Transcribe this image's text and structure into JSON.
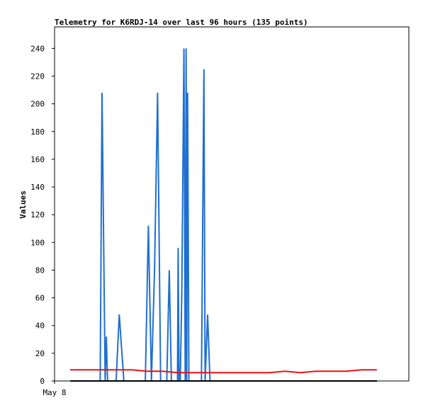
{
  "chart_data": {
    "type": "line",
    "title": "Telemetry for K6RDJ-14 over last 96 hours (135 points)",
    "xlabel": "",
    "ylabel": "Values",
    "x_ticks": [
      "May 8"
    ],
    "y_ticks": [
      0,
      20,
      40,
      60,
      80,
      100,
      120,
      140,
      160,
      180,
      200,
      220,
      240
    ],
    "ylim": [
      0,
      255
    ],
    "xlim": [
      0,
      100
    ],
    "grid": false,
    "legend": "none",
    "series": [
      {
        "color": "#1f6fd1",
        "x": [
          0,
          1,
          2,
          3,
          4,
          5,
          6,
          7,
          8,
          9,
          9.8,
          10.4,
          11.4,
          11.8,
          12.2,
          12.8,
          14,
          15,
          16,
          17.5,
          18.5,
          19.5,
          20.5,
          21.5,
          22.5,
          23.5,
          24.5,
          25.5,
          26.5,
          27.5,
          28.5,
          29.5,
          30.5,
          31.5,
          32.3,
          33,
          33.6,
          33.8,
          34.2,
          34.6,
          35,
          35.2,
          35.5,
          35.9,
          36.4,
          37.1,
          37.5,
          37.8,
          38,
          38.3,
          38.7,
          39.5,
          40.5,
          41.5,
          42.8,
          43.6,
          44,
          44.8,
          45.6,
          46,
          47,
          48.2,
          49.2,
          50,
          50.7,
          51,
          51.4,
          51.8,
          52.2,
          52.6,
          53,
          53.2,
          53.6,
          54,
          54.4,
          55,
          56,
          57,
          58,
          59,
          60,
          61,
          62,
          63,
          64,
          65,
          66,
          67,
          68,
          69,
          70,
          71,
          72,
          73,
          74,
          75,
          76,
          77,
          78,
          79,
          80,
          81,
          82,
          83,
          84,
          85,
          86,
          87,
          88,
          89,
          90,
          91,
          92,
          93,
          94,
          95,
          96,
          97,
          98,
          99,
          100
        ],
        "y": [
          0,
          0,
          0,
          0,
          0,
          0,
          0,
          0,
          0,
          0,
          0,
          208,
          0,
          32,
          0,
          0,
          0,
          0,
          48,
          0,
          0,
          0,
          0,
          0,
          0,
          0,
          0,
          112,
          0,
          80,
          208,
          0,
          0,
          0,
          80,
          0,
          0,
          0,
          0,
          0,
          0,
          96,
          0,
          0,
          64,
          240,
          0,
          240,
          0,
          208,
          0,
          0,
          0,
          0,
          0,
          225,
          0,
          48,
          0,
          0,
          0,
          0,
          0,
          0,
          0,
          0,
          0,
          0,
          0,
          0,
          0,
          0,
          0,
          0,
          0,
          0,
          0,
          0,
          0,
          0,
          0,
          0,
          0,
          0,
          0,
          0,
          0,
          0,
          0,
          0,
          0,
          0,
          0,
          0,
          0,
          0,
          0,
          0,
          0,
          0,
          0,
          0,
          0,
          0,
          0,
          0,
          0,
          0,
          0,
          0,
          0,
          0,
          0,
          0,
          0,
          0,
          0,
          0,
          0,
          0,
          0
        ]
      },
      {
        "color": "#ee1111",
        "x": [
          0,
          5,
          10,
          15,
          20,
          25,
          30,
          35,
          40,
          45,
          50,
          55,
          60,
          65,
          70,
          75,
          80,
          85,
          90,
          95,
          100
        ],
        "y": [
          8,
          8,
          8,
          8,
          8,
          7,
          7,
          6,
          6,
          6,
          6,
          6,
          6,
          6,
          7,
          6,
          7,
          7,
          7,
          8,
          8
        ]
      },
      {
        "color": "#000000",
        "x": [
          0,
          100
        ],
        "y": [
          0,
          0
        ]
      }
    ]
  }
}
